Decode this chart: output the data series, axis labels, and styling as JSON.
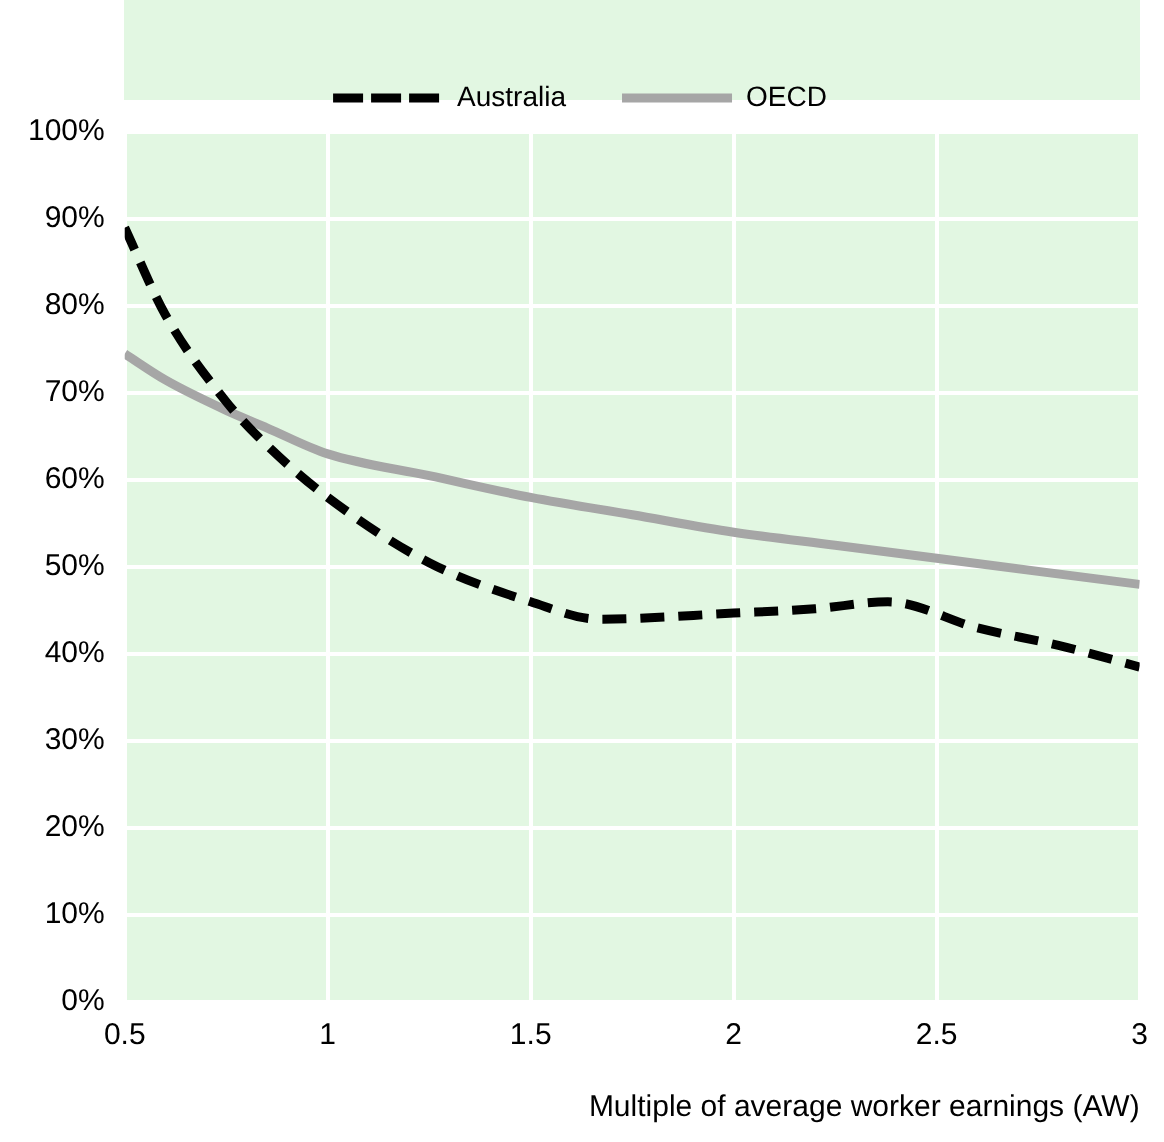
{
  "chart_data": {
    "type": "line",
    "xlabel": "Multiple of average worker earnings (AW)",
    "xlim": [
      0.5,
      3
    ],
    "xticks": [
      0.5,
      1,
      1.5,
      2,
      2.5,
      3
    ],
    "ylim": [
      0,
      100
    ],
    "yticks": [
      {
        "value": 0,
        "label": "0%"
      },
      {
        "value": 10,
        "label": "10%"
      },
      {
        "value": 20,
        "label": "20%"
      },
      {
        "value": 30,
        "label": "30%"
      },
      {
        "value": 40,
        "label": "40%"
      },
      {
        "value": 50,
        "label": "50%"
      },
      {
        "value": 60,
        "label": "60%"
      },
      {
        "value": 70,
        "label": "70%"
      },
      {
        "value": 80,
        "label": "80%"
      },
      {
        "value": 90,
        "label": "90%"
      },
      {
        "value": 100,
        "label": "100%"
      }
    ],
    "grid": true,
    "legend": "top",
    "marker": "none",
    "series": [
      {
        "name": "Australia",
        "color": "#000000",
        "line_style": "dashed",
        "x": [
          0.5,
          0.6,
          0.75,
          0.85,
          1,
          1.25,
          1.5,
          1.67,
          2,
          2.2,
          2.38,
          2.6,
          2.8,
          3
        ],
        "values": [
          89,
          79,
          69,
          64,
          58,
          50.5,
          46,
          44,
          44.7,
          45.2,
          46,
          43,
          41,
          38.5
        ]
      },
      {
        "name": "OECD",
        "color": "#a6a6a6",
        "line_style": "solid",
        "x": [
          0.5,
          0.6,
          0.75,
          0.85,
          1,
          1.25,
          1.5,
          1.75,
          2,
          2.25,
          2.5,
          2.75,
          3
        ],
        "values": [
          74.5,
          71.5,
          68,
          66,
          63,
          60.5,
          58,
          56,
          54,
          52.5,
          51,
          49.5,
          48
        ]
      }
    ]
  }
}
